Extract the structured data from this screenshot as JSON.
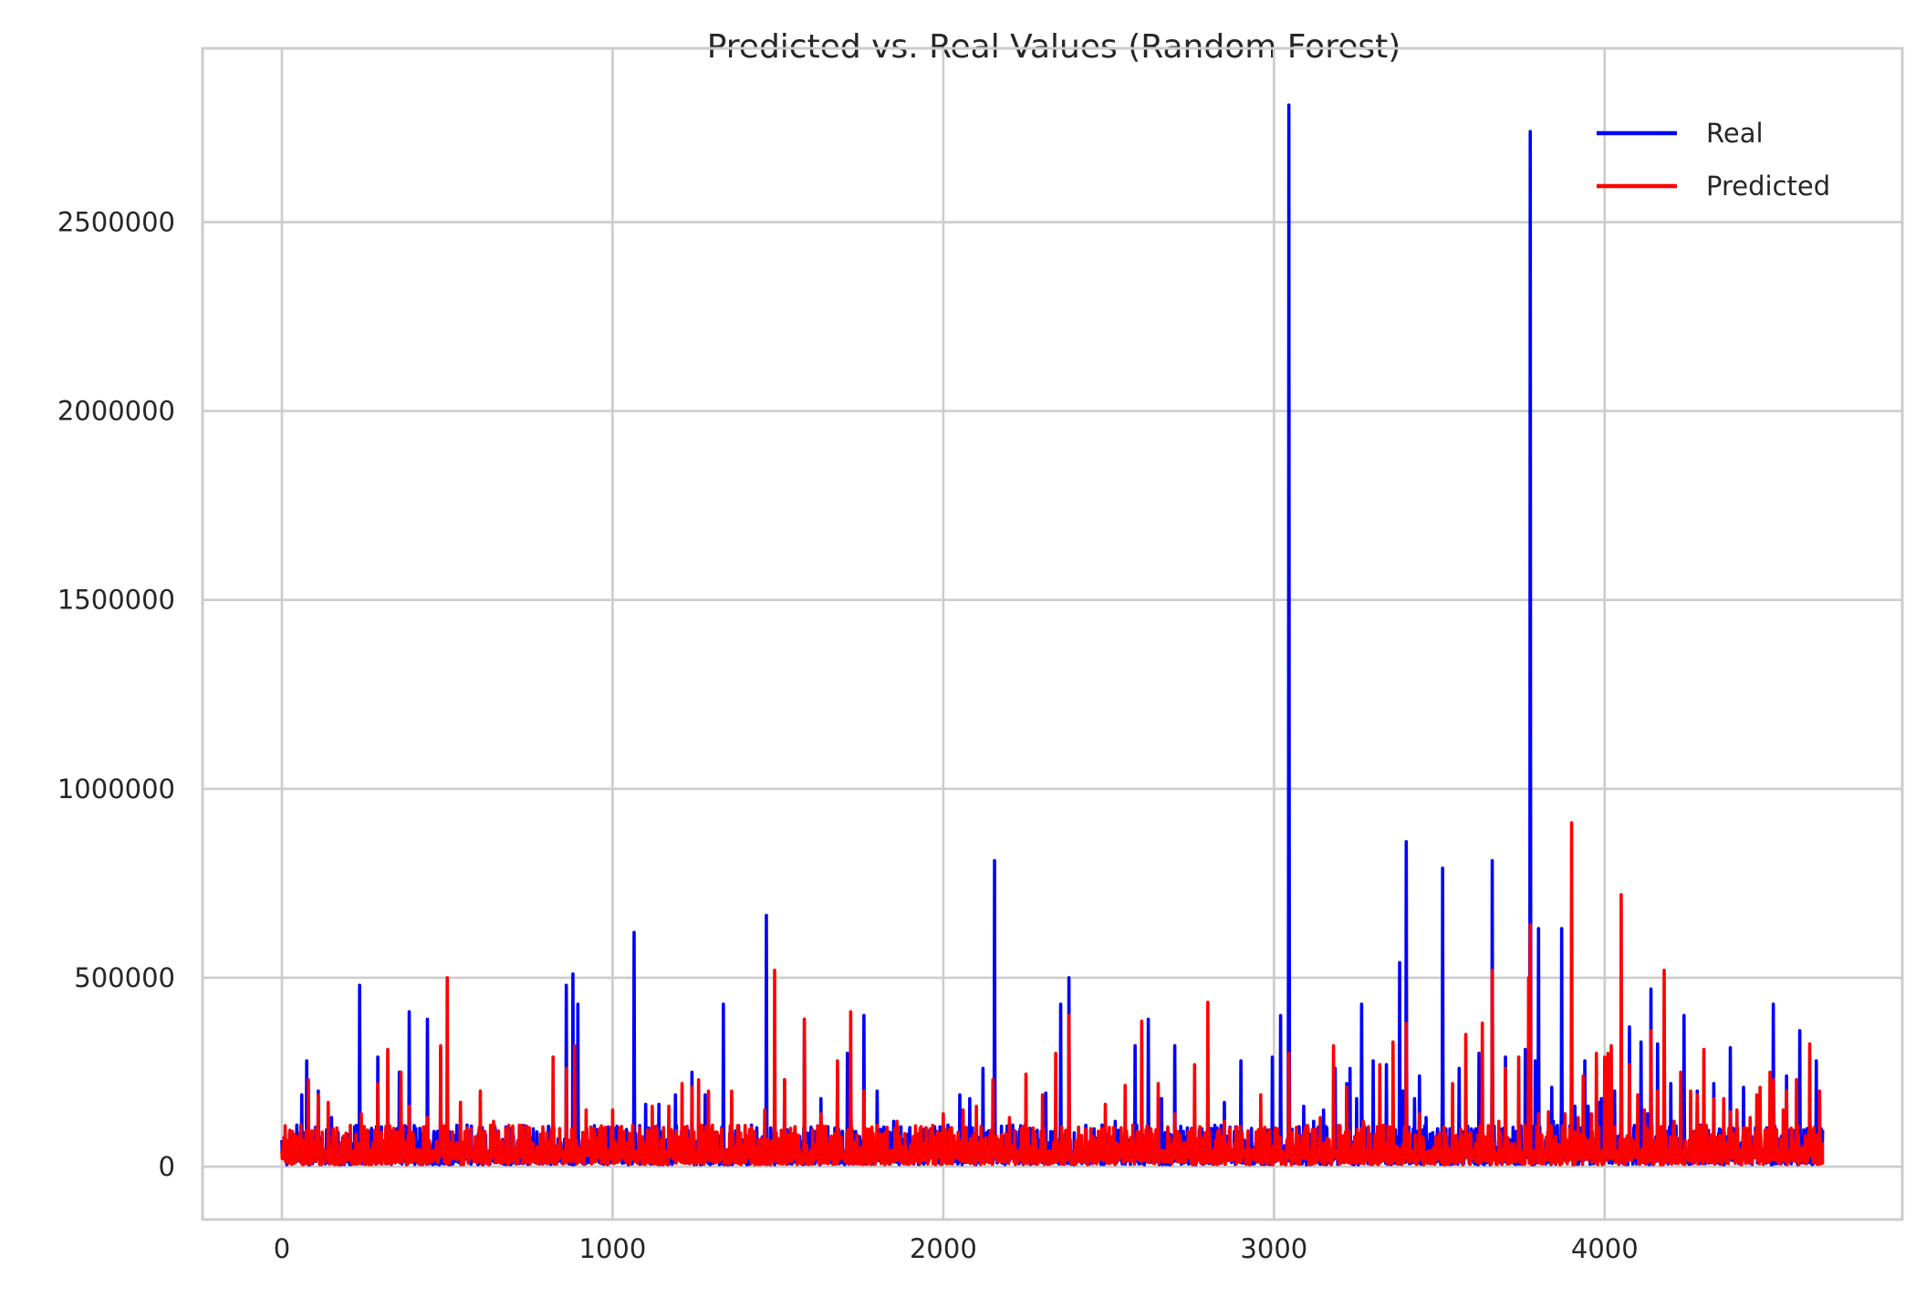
{
  "chart_data": {
    "type": "line",
    "title": "Predicted vs. Real Values (Random Forest)",
    "xlabel": "",
    "ylabel": "",
    "xlim": [
      -240,
      4900
    ],
    "ylim": [
      -140000,
      2960000
    ],
    "x_ticks": [
      0,
      1000,
      2000,
      3000,
      4000
    ],
    "x_tick_labels": [
      "0",
      "1000",
      "2000",
      "3000",
      "4000"
    ],
    "y_ticks": [
      0,
      500000,
      1000000,
      1500000,
      2000000,
      2500000
    ],
    "y_tick_labels": [
      "0",
      "500000",
      "1000000",
      "1500000",
      "2000000",
      "2500000"
    ],
    "grid": true,
    "legend_position": "top-right",
    "x_count": 4660,
    "series": [
      {
        "name": "Real",
        "color": "#0000ff",
        "peaks": [
          [
            0,
            70000
          ],
          [
            45,
            110000
          ],
          [
            60,
            190000
          ],
          [
            75,
            280000
          ],
          [
            110,
            200000
          ],
          [
            150,
            130000
          ],
          [
            200,
            30000
          ],
          [
            235,
            480000
          ],
          [
            290,
            290000
          ],
          [
            320,
            200000
          ],
          [
            355,
            250000
          ],
          [
            385,
            410000
          ],
          [
            440,
            390000
          ],
          [
            480,
            310000
          ],
          [
            520,
            60000
          ],
          [
            560,
            110000
          ],
          [
            600,
            100000
          ],
          [
            640,
            50000
          ],
          [
            700,
            40000
          ],
          [
            760,
            100000
          ],
          [
            800,
            60000
          ],
          [
            860,
            480000
          ],
          [
            880,
            510000
          ],
          [
            895,
            430000
          ],
          [
            950,
            60000
          ],
          [
            1010,
            70000
          ],
          [
            1065,
            620000
          ],
          [
            1100,
            165000
          ],
          [
            1140,
            165000
          ],
          [
            1190,
            190000
          ],
          [
            1240,
            250000
          ],
          [
            1280,
            190000
          ],
          [
            1310,
            90000
          ],
          [
            1335,
            430000
          ],
          [
            1380,
            90000
          ],
          [
            1420,
            110000
          ],
          [
            1465,
            665000
          ],
          [
            1520,
            230000
          ],
          [
            1580,
            390000
          ],
          [
            1630,
            180000
          ],
          [
            1680,
            260000
          ],
          [
            1710,
            300000
          ],
          [
            1760,
            400000
          ],
          [
            1800,
            200000
          ],
          [
            1850,
            120000
          ],
          [
            1900,
            40000
          ],
          [
            1950,
            50000
          ],
          [
            2000,
            110000
          ],
          [
            2050,
            190000
          ],
          [
            2080,
            180000
          ],
          [
            2120,
            260000
          ],
          [
            2155,
            810000
          ],
          [
            2210,
            110000
          ],
          [
            2260,
            100000
          ],
          [
            2310,
            195000
          ],
          [
            2355,
            430000
          ],
          [
            2380,
            500000
          ],
          [
            2430,
            100000
          ],
          [
            2480,
            110000
          ],
          [
            2520,
            120000
          ],
          [
            2580,
            320000
          ],
          [
            2620,
            390000
          ],
          [
            2660,
            180000
          ],
          [
            2700,
            320000
          ],
          [
            2745,
            70000
          ],
          [
            2800,
            160000
          ],
          [
            2850,
            170000
          ],
          [
            2900,
            280000
          ],
          [
            2950,
            50000
          ],
          [
            2995,
            290000
          ],
          [
            3020,
            400000
          ],
          [
            3045,
            2810000
          ],
          [
            3090,
            160000
          ],
          [
            3120,
            120000
          ],
          [
            3150,
            150000
          ],
          [
            3185,
            260000
          ],
          [
            3220,
            220000
          ],
          [
            3250,
            180000
          ],
          [
            3290,
            60000
          ],
          [
            3340,
            260000
          ],
          [
            3380,
            540000
          ],
          [
            3400,
            860000
          ],
          [
            3440,
            240000
          ],
          [
            3480,
            90000
          ],
          [
            3520,
            100000
          ],
          [
            3580,
            80000
          ],
          [
            3620,
            300000
          ],
          [
            3660,
            810000
          ],
          [
            3700,
            290000
          ],
          [
            3745,
            100000
          ],
          [
            3775,
            2740000
          ],
          [
            3800,
            630000
          ],
          [
            3845,
            120000
          ],
          [
            3900,
            120000
          ],
          [
            3940,
            280000
          ],
          [
            3985,
            170000
          ],
          [
            4030,
            200000
          ],
          [
            4075,
            370000
          ],
          [
            4110,
            330000
          ],
          [
            4140,
            470000
          ],
          [
            4180,
            210000
          ],
          [
            4230,
            75000
          ],
          [
            4290,
            110000
          ],
          [
            4330,
            220000
          ],
          [
            4380,
            110000
          ],
          [
            4420,
            150000
          ],
          [
            4460,
            120000
          ],
          [
            4500,
            90000
          ],
          [
            4540,
            60000
          ],
          [
            4590,
            120000
          ],
          [
            4620,
            190000
          ],
          [
            4640,
            280000
          ],
          [
            4655,
            100000
          ]
        ],
        "peaks_tail": [
          [
            3230,
            260000
          ],
          [
            3265,
            430000
          ],
          [
            3300,
            280000
          ],
          [
            3340,
            270000
          ],
          [
            3390,
            200000
          ],
          [
            3425,
            180000
          ],
          [
            3460,
            130000
          ],
          [
            3510,
            790000
          ],
          [
            3560,
            260000
          ],
          [
            3610,
            100000
          ],
          [
            3660,
            300000
          ],
          [
            3700,
            270000
          ],
          [
            3760,
            310000
          ],
          [
            3790,
            280000
          ],
          [
            3840,
            210000
          ],
          [
            3870,
            630000
          ],
          [
            3910,
            160000
          ],
          [
            3950,
            160000
          ],
          [
            3990,
            180000
          ],
          [
            4040,
            80000
          ],
          [
            4090,
            70000
          ],
          [
            4130,
            140000
          ],
          [
            4160,
            325000
          ],
          [
            4200,
            220000
          ],
          [
            4240,
            400000
          ],
          [
            4280,
            200000
          ],
          [
            4330,
            120000
          ],
          [
            4380,
            315000
          ],
          [
            4420,
            210000
          ],
          [
            4460,
            100000
          ],
          [
            4510,
            430000
          ],
          [
            4550,
            240000
          ],
          [
            4590,
            360000
          ]
        ]
      },
      {
        "name": "Predicted",
        "color": "#ff0000",
        "peaks": [
          [
            0,
            40000
          ],
          [
            50,
            60000
          ],
          [
            80,
            230000
          ],
          [
            110,
            190000
          ],
          [
            140,
            170000
          ],
          [
            200,
            20000
          ],
          [
            240,
            140000
          ],
          [
            290,
            220000
          ],
          [
            320,
            310000
          ],
          [
            360,
            250000
          ],
          [
            385,
            160000
          ],
          [
            440,
            130000
          ],
          [
            480,
            320000
          ],
          [
            500,
            500000
          ],
          [
            540,
            170000
          ],
          [
            560,
            60000
          ],
          [
            600,
            200000
          ],
          [
            640,
            120000
          ],
          [
            680,
            80000
          ],
          [
            720,
            60000
          ],
          [
            760,
            60000
          ],
          [
            820,
            290000
          ],
          [
            860,
            260000
          ],
          [
            885,
            320000
          ],
          [
            920,
            150000
          ],
          [
            960,
            100000
          ],
          [
            1000,
            150000
          ],
          [
            1060,
            90000
          ],
          [
            1120,
            160000
          ],
          [
            1170,
            160000
          ],
          [
            1210,
            220000
          ],
          [
            1240,
            210000
          ],
          [
            1260,
            230000
          ],
          [
            1290,
            200000
          ],
          [
            1330,
            100000
          ],
          [
            1360,
            200000
          ],
          [
            1400,
            90000
          ],
          [
            1460,
            150000
          ],
          [
            1490,
            520000
          ],
          [
            1520,
            230000
          ],
          [
            1580,
            390000
          ],
          [
            1630,
            140000
          ],
          [
            1680,
            280000
          ],
          [
            1720,
            410000
          ],
          [
            1760,
            200000
          ],
          [
            1800,
            110000
          ],
          [
            1860,
            120000
          ],
          [
            1910,
            80000
          ],
          [
            1960,
            100000
          ],
          [
            2000,
            140000
          ],
          [
            2060,
            150000
          ],
          [
            2100,
            160000
          ],
          [
            2150,
            230000
          ],
          [
            2200,
            130000
          ],
          [
            2250,
            245000
          ],
          [
            2300,
            190000
          ],
          [
            2340,
            300000
          ],
          [
            2380,
            400000
          ],
          [
            2430,
            100000
          ],
          [
            2490,
            165000
          ],
          [
            2550,
            215000
          ],
          [
            2600,
            385000
          ],
          [
            2650,
            220000
          ],
          [
            2700,
            140000
          ],
          [
            2760,
            270000
          ],
          [
            2800,
            435000
          ],
          [
            2850,
            120000
          ],
          [
            2900,
            40000
          ],
          [
            2960,
            190000
          ],
          [
            3010,
            100000
          ],
          [
            3045,
            300000
          ],
          [
            3090,
            60000
          ],
          [
            3140,
            130000
          ],
          [
            3180,
            320000
          ],
          [
            3220,
            210000
          ],
          [
            3270,
            120000
          ],
          [
            3320,
            270000
          ],
          [
            3360,
            330000
          ],
          [
            3400,
            380000
          ],
          [
            3440,
            140000
          ],
          [
            3490,
            80000
          ],
          [
            3540,
            220000
          ],
          [
            3580,
            350000
          ],
          [
            3630,
            380000
          ],
          [
            3660,
            520000
          ],
          [
            3700,
            260000
          ],
          [
            3740,
            290000
          ],
          [
            3775,
            640000
          ],
          [
            3830,
            145000
          ],
          [
            3880,
            140000
          ],
          [
            3920,
            130000
          ],
          [
            3960,
            140000
          ],
          [
            4010,
            300000
          ],
          [
            4050,
            720000
          ],
          [
            4100,
            190000
          ],
          [
            4140,
            360000
          ],
          [
            4180,
            520000
          ],
          [
            4230,
            250000
          ],
          [
            4280,
            190000
          ],
          [
            4330,
            70000
          ],
          [
            4380,
            145000
          ],
          [
            4420,
            100000
          ],
          [
            4460,
            190000
          ],
          [
            4500,
            250000
          ],
          [
            4540,
            150000
          ],
          [
            4580,
            130000
          ],
          [
            4620,
            325000
          ],
          [
            4650,
            200000
          ]
        ],
        "peaks_tail": [
          [
            3680,
            120000
          ],
          [
            3700,
            260000
          ],
          [
            3740,
            200000
          ],
          [
            3770,
            500000
          ],
          [
            3800,
            140000
          ],
          [
            3830,
            130000
          ],
          [
            3900,
            910000
          ],
          [
            3935,
            240000
          ],
          [
            3975,
            300000
          ],
          [
            4000,
            290000
          ],
          [
            4020,
            320000
          ],
          [
            4075,
            270000
          ],
          [
            4120,
            150000
          ],
          [
            4160,
            200000
          ],
          [
            4210,
            120000
          ],
          [
            4260,
            200000
          ],
          [
            4300,
            310000
          ],
          [
            4330,
            180000
          ],
          [
            4360,
            180000
          ],
          [
            4400,
            150000
          ],
          [
            4440,
            130000
          ],
          [
            4470,
            210000
          ],
          [
            4510,
            230000
          ],
          [
            4550,
            200000
          ],
          [
            4580,
            230000
          ],
          [
            4620,
            210000
          ]
        ]
      }
    ]
  },
  "legend": {
    "items": [
      {
        "label": "Real",
        "color": "#0000ff"
      },
      {
        "label": "Predicted",
        "color": "#ff0000"
      }
    ]
  }
}
